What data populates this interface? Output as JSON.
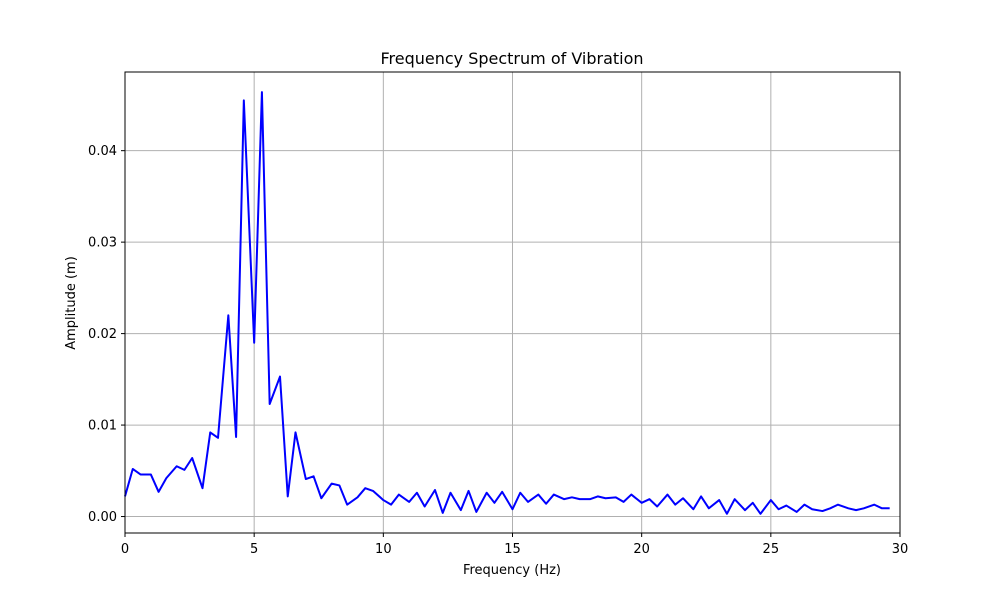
{
  "chart_data": {
    "type": "line",
    "title": "Frequency Spectrum of Vibration",
    "xlabel": "Frequency (Hz)",
    "ylabel": "Amplitude (m)",
    "xlim": [
      0,
      30
    ],
    "ylim": [
      -0.0018,
      0.0486
    ],
    "xticks": [
      0,
      5,
      10,
      15,
      20,
      25,
      30
    ],
    "yticks": [
      0.0,
      0.01,
      0.02,
      0.03,
      0.04
    ],
    "ytick_labels": [
      "0.00",
      "0.01",
      "0.02",
      "0.03",
      "0.04"
    ],
    "grid": true,
    "series": [
      {
        "color": "#0000ff",
        "x": [
          0,
          0.3,
          0.6,
          1.0,
          1.3,
          1.6,
          2.0,
          2.3,
          2.6,
          3.0,
          3.3,
          3.6,
          4.0,
          4.3,
          4.6,
          5.0,
          5.3,
          5.6,
          6.0,
          6.3,
          6.6,
          7.0,
          7.3,
          7.6,
          8.0,
          8.3,
          8.6,
          9.0,
          9.3,
          9.6,
          10.0,
          10.3,
          10.6,
          11.0,
          11.3,
          11.6,
          12.0,
          12.3,
          12.6,
          13.0,
          13.3,
          13.6,
          14.0,
          14.3,
          14.6,
          15.0,
          15.3,
          15.6,
          16.0,
          16.3,
          16.6,
          17.0,
          17.3,
          17.6,
          18.0,
          18.3,
          18.6,
          19.0,
          19.3,
          19.6,
          20.0,
          20.3,
          20.6,
          21.0,
          21.3,
          21.6,
          22.0,
          22.3,
          22.6,
          23.0,
          23.3,
          23.6,
          24.0,
          24.3,
          24.6,
          25.0,
          25.3,
          25.6,
          26.0,
          26.3,
          26.6,
          27.0,
          27.3,
          27.6,
          28.0,
          28.3,
          28.6,
          29.0,
          29.3,
          29.6
        ],
        "y": [
          0.0022,
          0.0052,
          0.0046,
          0.0046,
          0.0027,
          0.0042,
          0.0055,
          0.0051,
          0.0064,
          0.0031,
          0.0092,
          0.0086,
          0.022,
          0.0087,
          0.0455,
          0.019,
          0.0464,
          0.0123,
          0.0153,
          0.0022,
          0.0092,
          0.0041,
          0.0044,
          0.002,
          0.0036,
          0.0034,
          0.0013,
          0.0021,
          0.0031,
          0.0028,
          0.0018,
          0.0013,
          0.0024,
          0.0016,
          0.0026,
          0.0011,
          0.0029,
          0.0004,
          0.0026,
          0.0007,
          0.0028,
          0.0005,
          0.0026,
          0.0015,
          0.0027,
          0.0008,
          0.0026,
          0.0016,
          0.0024,
          0.0014,
          0.0024,
          0.0019,
          0.0021,
          0.0019,
          0.0019,
          0.0022,
          0.002,
          0.0021,
          0.0016,
          0.0024,
          0.0015,
          0.0019,
          0.0011,
          0.0024,
          0.0013,
          0.002,
          0.0008,
          0.0022,
          0.0009,
          0.0018,
          0.0003,
          0.0019,
          0.0007,
          0.0015,
          0.0003,
          0.0018,
          0.0008,
          0.0012,
          0.0005,
          0.0013,
          0.0008,
          0.0006,
          0.0009,
          0.0013,
          0.0009,
          0.0007,
          0.0009,
          0.0013,
          0.0009,
          0.0009
        ]
      }
    ]
  }
}
